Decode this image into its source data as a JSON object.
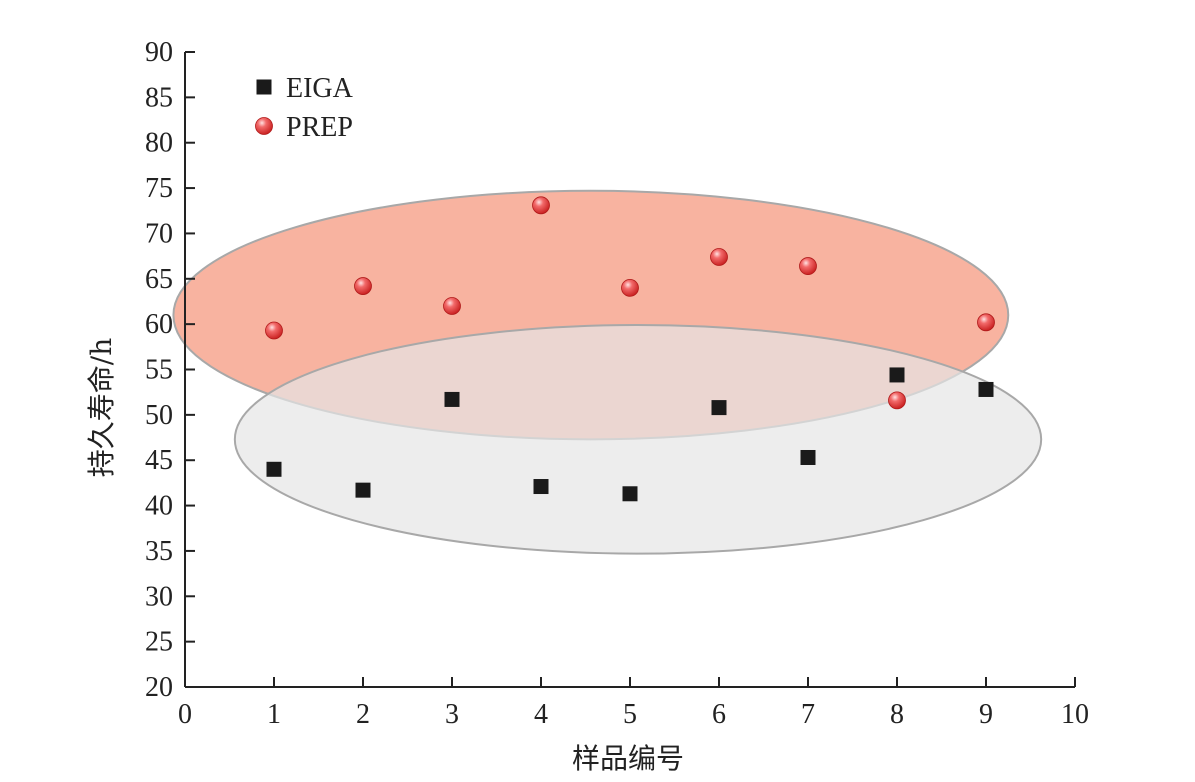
{
  "chart_data": {
    "type": "scatter",
    "title": "",
    "xlabel": "样品编号",
    "ylabel": "持久寿命/h",
    "xlim": [
      0,
      10
    ],
    "ylim": [
      20,
      90
    ],
    "xticks": [
      0,
      1,
      2,
      3,
      4,
      5,
      6,
      7,
      8,
      9,
      10
    ],
    "yticks": [
      20,
      25,
      30,
      35,
      40,
      45,
      50,
      55,
      60,
      65,
      70,
      75,
      80,
      85,
      90
    ],
    "grid": false,
    "legend_position": "top-left",
    "series": [
      {
        "name": "EIGA",
        "marker": "square",
        "color": "#1a1a1a",
        "x": [
          1,
          2,
          3,
          4,
          5,
          6,
          7,
          8,
          9
        ],
        "y": [
          44.0,
          41.7,
          51.7,
          42.1,
          41.3,
          50.8,
          45.3,
          54.4,
          52.8
        ]
      },
      {
        "name": "PREP",
        "marker": "circle",
        "color": "#e33b3b",
        "x": [
          1,
          2,
          3,
          4,
          5,
          6,
          7,
          8,
          9
        ],
        "y": [
          59.3,
          64.2,
          62.0,
          73.1,
          64.0,
          67.4,
          66.4,
          51.6,
          60.2
        ]
      }
    ],
    "regions": [
      {
        "series": "PREP",
        "fill": "#f7a68f",
        "stroke": "#a8a8a8",
        "center": [
          4.56,
          61.0
        ],
        "radius_x": 4.69,
        "radius_y": 13.7
      },
      {
        "series": "EIGA",
        "fill": "#e6e6e6",
        "stroke": "#a8a8a8",
        "center": [
          5.09,
          47.3
        ],
        "radius_x": 4.53,
        "radius_y": 12.6
      }
    ]
  }
}
